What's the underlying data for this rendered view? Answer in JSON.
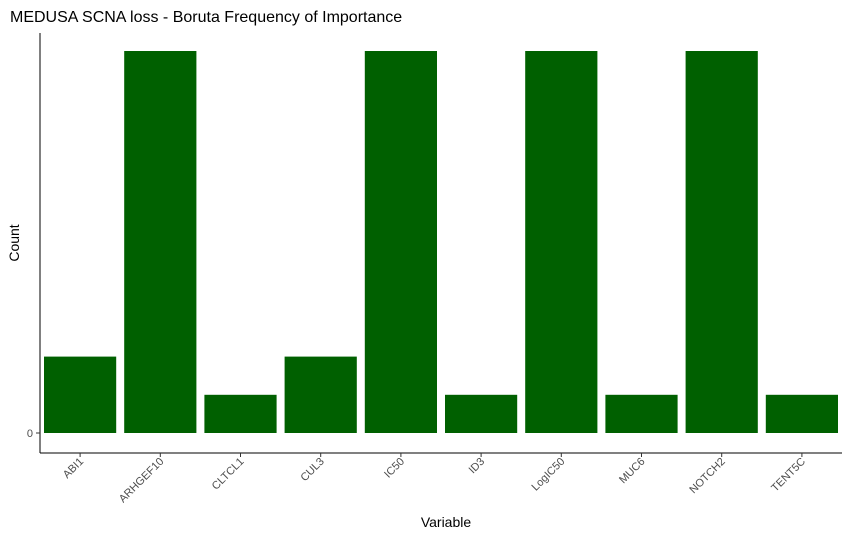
{
  "chart_data": {
    "type": "bar",
    "title": "MEDUSA SCNA loss - Boruta Frequency of Importance",
    "xlabel": "Variable",
    "ylabel": "Count",
    "categories": [
      "ABI1",
      "ARHGEF10",
      "CLTCL1",
      "CUL3",
      "IC50",
      "ID3",
      "LogIC50",
      "MUC6",
      "NOTCH2",
      "TENT5C"
    ],
    "values": [
      2,
      10,
      1,
      2,
      10,
      1,
      10,
      1,
      10,
      1
    ],
    "y_ticks": [
      "0"
    ],
    "ylim": [
      0,
      10.5
    ],
    "grid": false,
    "legend": "none",
    "bar_color": "#006000"
  }
}
